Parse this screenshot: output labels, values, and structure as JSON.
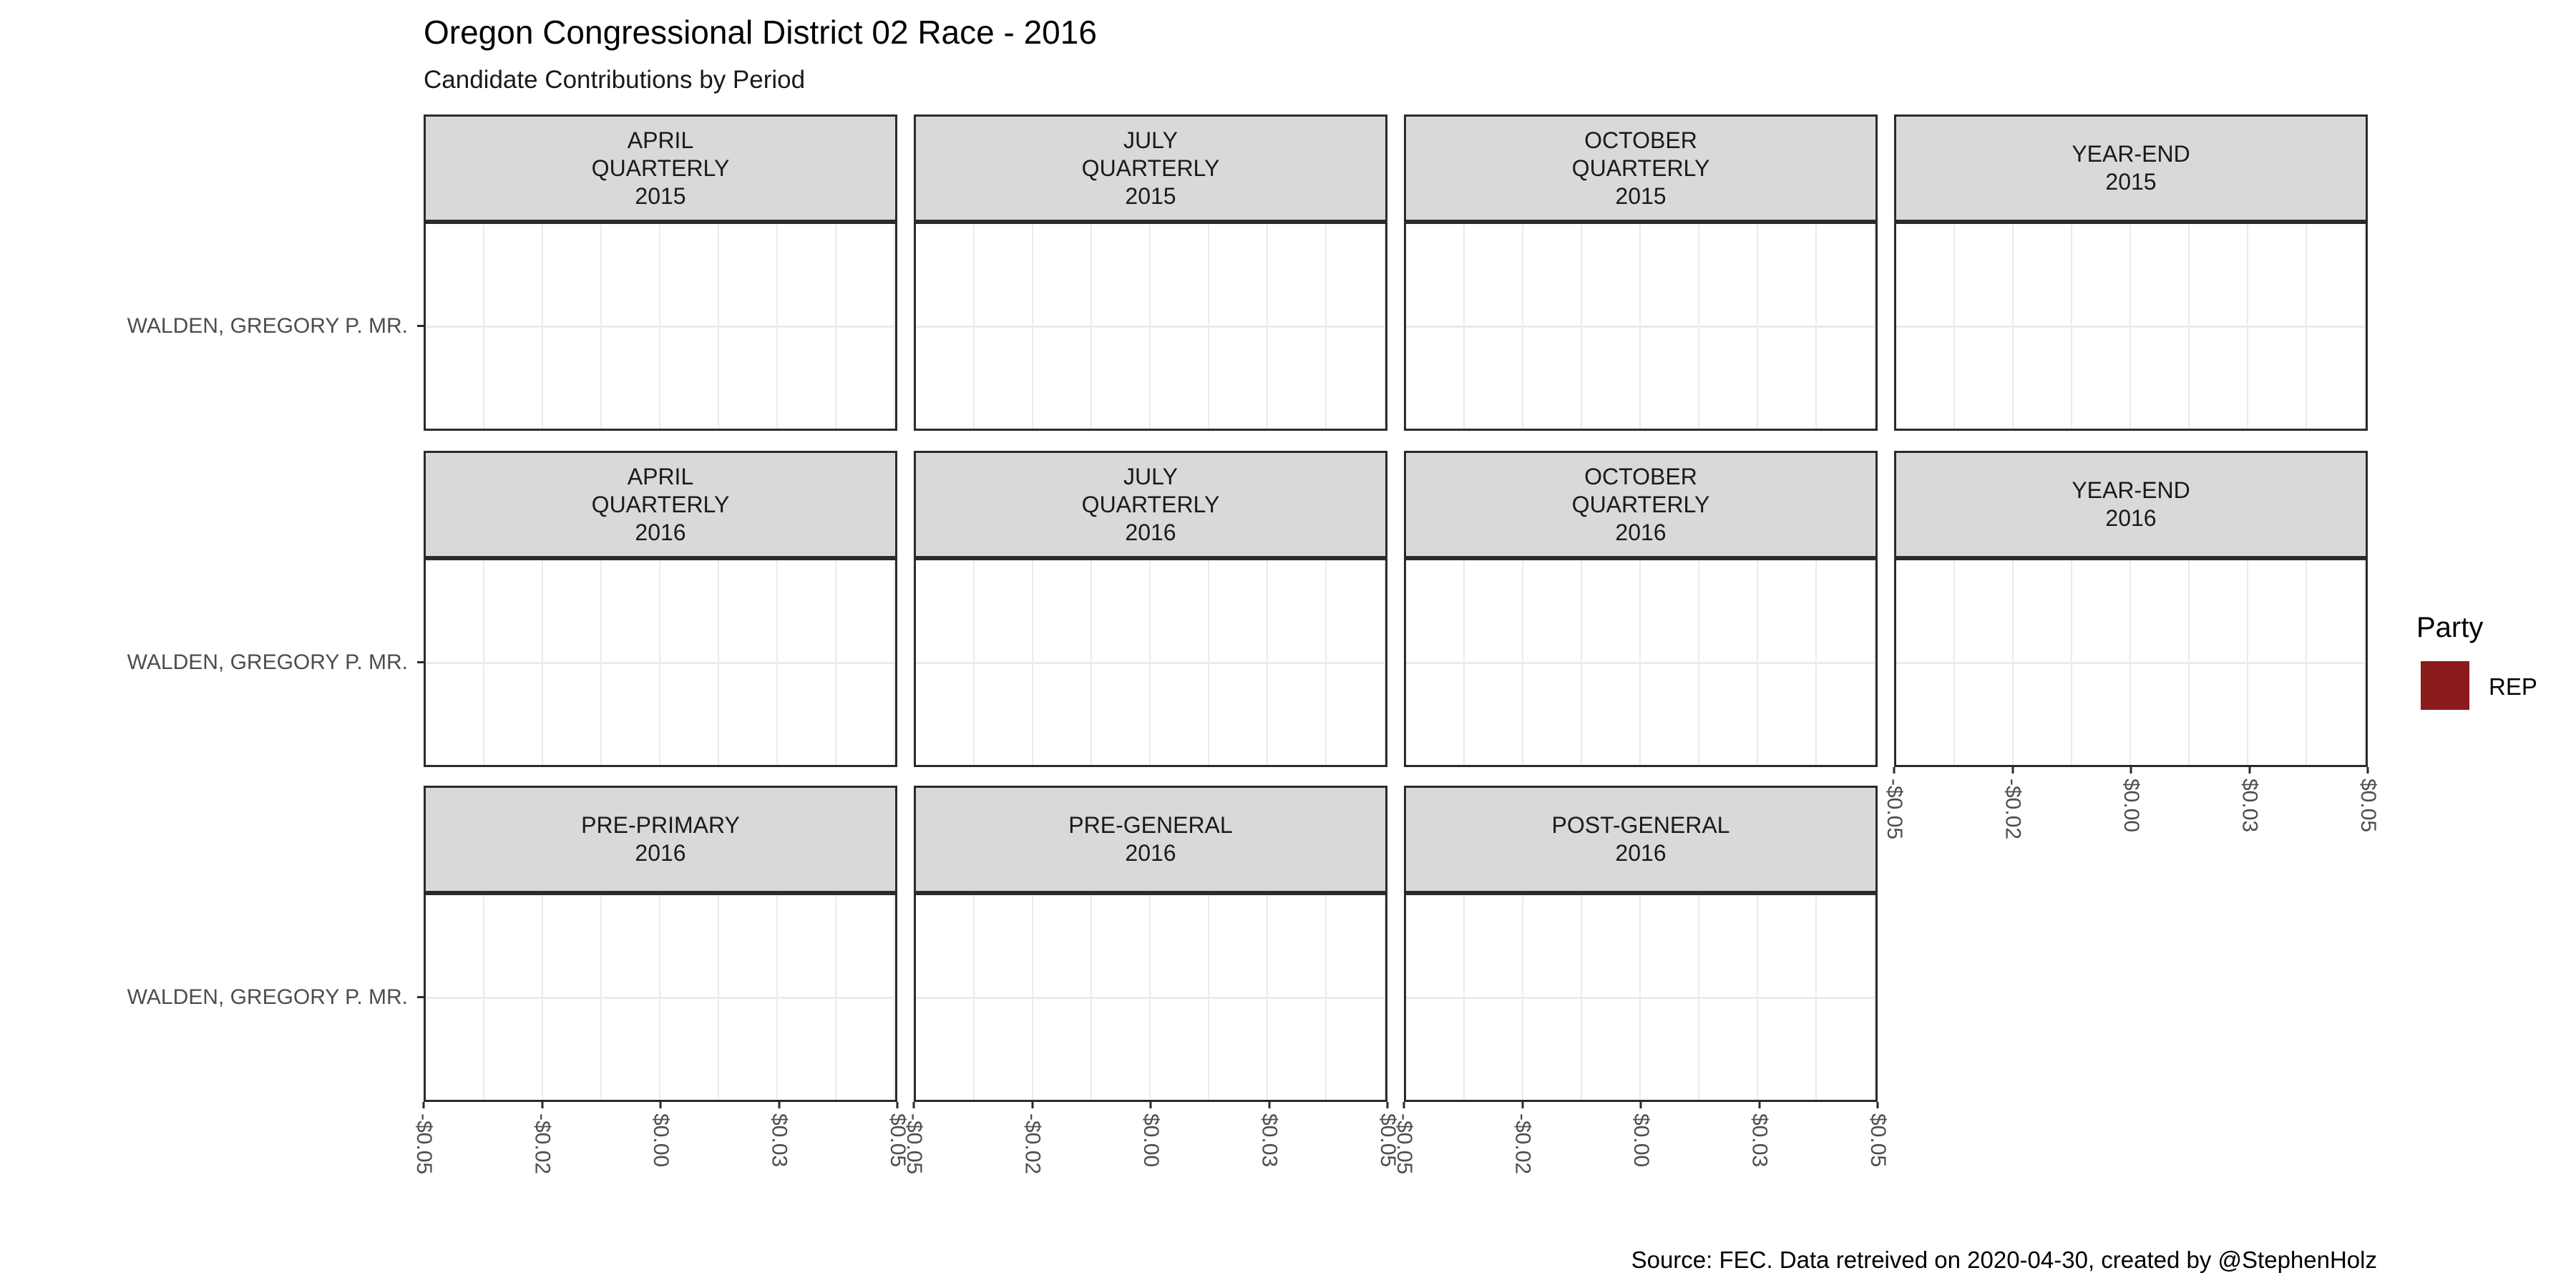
{
  "title": "Oregon Congressional District 02 Race - 2016",
  "subtitle": "Candidate Contributions by Period",
  "caption": "Source: FEC. Data retreived on 2020-04-30, created by @StephenHolz",
  "candidate": "WALDEN, GREGORY P. MR.",
  "strips": [
    "APRIL\nQUARTERLY\n2015",
    "JULY\nQUARTERLY\n2015",
    "OCTOBER\nQUARTERLY\n2015",
    "YEAR-END\n2015",
    "APRIL\nQUARTERLY\n2016",
    "JULY\nQUARTERLY\n2016",
    "OCTOBER\nQUARTERLY\n2016",
    "YEAR-END\n2016",
    "PRE-PRIMARY\n2016",
    "PRE-GENERAL\n2016",
    "POST-GENERAL\n2016"
  ],
  "x_axis": {
    "tick_labels": [
      "-$0.05",
      "-$0.02",
      "$0.00",
      "$0.03",
      "$0.05"
    ]
  },
  "legend": {
    "title": "Party",
    "items": [
      {
        "label": "REP",
        "color": "#8B1A1A"
      }
    ]
  },
  "colors": {
    "strip_background": "#d9d9d9",
    "panel_border": "#2b2b2b",
    "gridline": "#ebebeb",
    "axis_text": "#4d4d4d",
    "rep_red": "#8B1A1A"
  },
  "chart_data": {
    "type": "bar",
    "orientation": "horizontal",
    "title": "Oregon Congressional District 02 Race - 2016",
    "subtitle": "Candidate Contributions by Period",
    "caption": "Source: FEC. Data retreived on 2020-04-30, created by @StephenHolz",
    "y_categories": [
      "WALDEN, GREGORY P. MR."
    ],
    "xlabel": "",
    "ylabel": "",
    "xlim": [
      -0.05,
      0.05
    ],
    "x_tick_labels": [
      "-$0.05",
      "-$0.02",
      "$0.00",
      "$0.03",
      "$0.05"
    ],
    "grid": true,
    "legend_position": "right",
    "legend": {
      "title": "Party",
      "entries": [
        {
          "label": "REP",
          "color": "#8B1A1A"
        }
      ]
    },
    "facets": [
      {
        "period": "APRIL QUARTERLY",
        "year": "2015",
        "candidate": "WALDEN, GREGORY P. MR.",
        "party": "REP",
        "value": 0
      },
      {
        "period": "JULY QUARTERLY",
        "year": "2015",
        "candidate": "WALDEN, GREGORY P. MR.",
        "party": "REP",
        "value": 0
      },
      {
        "period": "OCTOBER QUARTERLY",
        "year": "2015",
        "candidate": "WALDEN, GREGORY P. MR.",
        "party": "REP",
        "value": 0
      },
      {
        "period": "YEAR-END",
        "year": "2015",
        "candidate": "WALDEN, GREGORY P. MR.",
        "party": "REP",
        "value": 0
      },
      {
        "period": "APRIL QUARTERLY",
        "year": "2016",
        "candidate": "WALDEN, GREGORY P. MR.",
        "party": "REP",
        "value": 0
      },
      {
        "period": "JULY QUARTERLY",
        "year": "2016",
        "candidate": "WALDEN, GREGORY P. MR.",
        "party": "REP",
        "value": 0
      },
      {
        "period": "OCTOBER QUARTERLY",
        "year": "2016",
        "candidate": "WALDEN, GREGORY P. MR.",
        "party": "REP",
        "value": 0
      },
      {
        "period": "YEAR-END",
        "year": "2016",
        "candidate": "WALDEN, GREGORY P. MR.",
        "party": "REP",
        "value": 0
      },
      {
        "period": "PRE-PRIMARY",
        "year": "2016",
        "candidate": "WALDEN, GREGORY P. MR.",
        "party": "REP",
        "value": 0
      },
      {
        "period": "PRE-GENERAL",
        "year": "2016",
        "candidate": "WALDEN, GREGORY P. MR.",
        "party": "REP",
        "value": 0
      },
      {
        "period": "POST-GENERAL",
        "year": "2016",
        "candidate": "WALDEN, GREGORY P. MR.",
        "party": "REP",
        "value": 0
      }
    ]
  }
}
